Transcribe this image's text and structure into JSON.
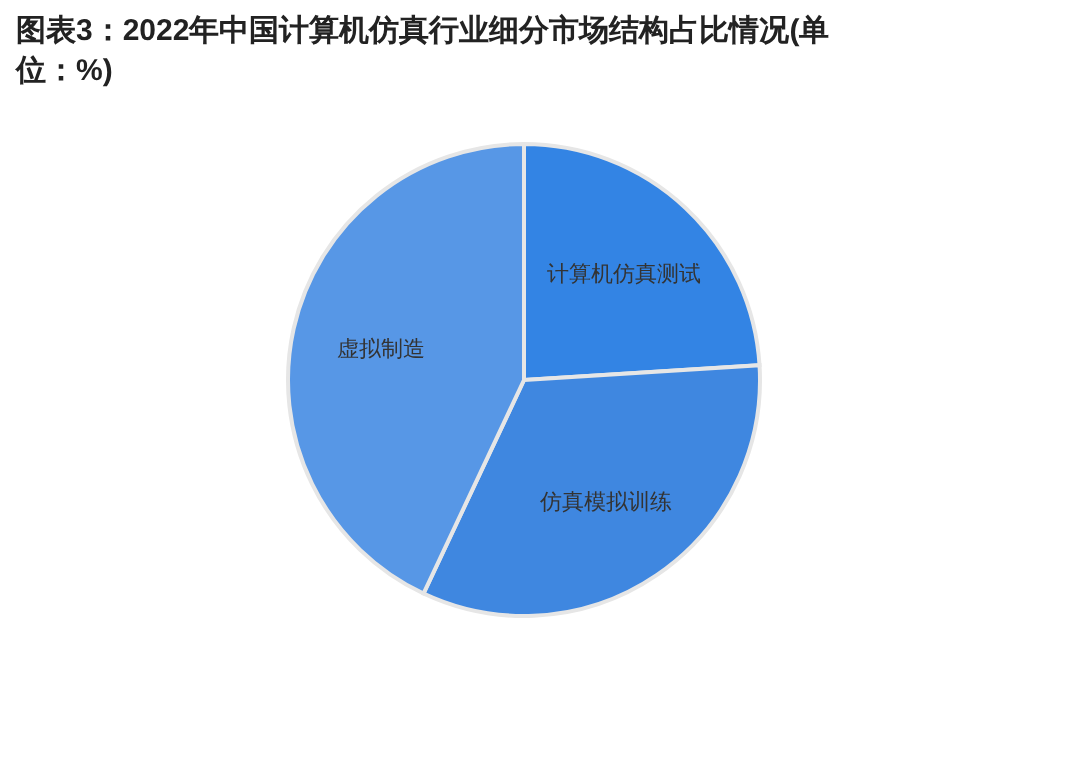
{
  "chart_data": {
    "type": "pie",
    "title": "图表3：2022年中国计算机仿真行业细分市场结构占比情况(单位：%)",
    "categories": [
      "计算机仿真测试",
      "仿真模拟训练",
      "虚拟制造"
    ],
    "values": [
      24,
      33,
      43
    ],
    "colors": [
      "#3384e4",
      "#3f87e0",
      "#5797e6"
    ]
  }
}
